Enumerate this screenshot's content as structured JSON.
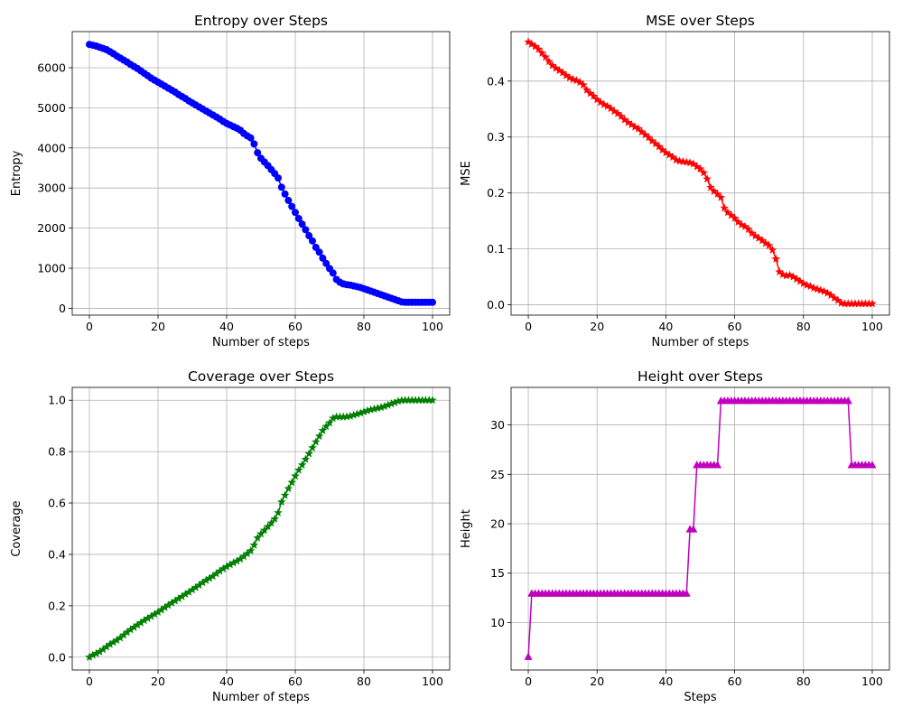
{
  "chart_data": [
    {
      "type": "line",
      "title": "Entropy over Steps",
      "xlabel": "Number of steps",
      "ylabel": "Entropy",
      "xlim": [
        -5,
        105
      ],
      "ylim": [
        -170,
        6900
      ],
      "xticks": [
        0,
        20,
        40,
        60,
        80,
        100
      ],
      "yticks": [
        0,
        1000,
        2000,
        3000,
        4000,
        5000,
        6000
      ],
      "grid": true,
      "marker": "circle",
      "color": "#0000ff",
      "series": [
        {
          "x": [
            0,
            1,
            2,
            3,
            4,
            5,
            6,
            7,
            8,
            9,
            10,
            11,
            12,
            13,
            14,
            15,
            16,
            17,
            18,
            19,
            20,
            21,
            22,
            23,
            24,
            25,
            26,
            27,
            28,
            29,
            30,
            31,
            32,
            33,
            34,
            35,
            36,
            37,
            38,
            39,
            40,
            41,
            42,
            43,
            44,
            45,
            46,
            47,
            48,
            49,
            50,
            51,
            52,
            53,
            54,
            55,
            56,
            57,
            58,
            59,
            60,
            61,
            62,
            63,
            64,
            65,
            66,
            67,
            68,
            69,
            70,
            71,
            72,
            73,
            74,
            75,
            76,
            77,
            78,
            79,
            80,
            81,
            82,
            83,
            84,
            85,
            86,
            87,
            88,
            89,
            90,
            91,
            92,
            93,
            94,
            95,
            96,
            97,
            98,
            99,
            100
          ],
          "values": [
            6580,
            6560,
            6540,
            6510,
            6480,
            6450,
            6400,
            6350,
            6290,
            6240,
            6190,
            6140,
            6080,
            6030,
            5980,
            5920,
            5860,
            5800,
            5740,
            5690,
            5640,
            5590,
            5540,
            5490,
            5440,
            5390,
            5330,
            5280,
            5230,
            5170,
            5120,
            5070,
            5020,
            4970,
            4920,
            4870,
            4820,
            4770,
            4720,
            4660,
            4610,
            4570,
            4530,
            4490,
            4440,
            4360,
            4300,
            4250,
            4100,
            3880,
            3740,
            3650,
            3560,
            3460,
            3360,
            3250,
            3020,
            2850,
            2690,
            2540,
            2390,
            2240,
            2100,
            1960,
            1810,
            1680,
            1520,
            1400,
            1250,
            1120,
            990,
            880,
            720,
            650,
            610,
            590,
            580,
            560,
            540,
            520,
            490,
            460,
            430,
            400,
            370,
            340,
            310,
            280,
            250,
            220,
            190,
            160,
            150,
            150,
            150,
            150,
            150,
            150,
            150,
            150,
            150
          ]
        }
      ]
    },
    {
      "type": "line",
      "title": "MSE over Steps",
      "xlabel": "Number of steps",
      "ylabel": "MSE",
      "xlim": [
        -5,
        105
      ],
      "ylim": [
        -0.0185,
        0.4885
      ],
      "xticks": [
        0,
        20,
        40,
        60,
        80,
        100
      ],
      "yticks": [
        0.0,
        0.1,
        0.2,
        0.3,
        0.4
      ],
      "ytick_labels": [
        "0.0",
        "0.1",
        "0.2",
        "0.3",
        "0.4"
      ],
      "grid": true,
      "marker": "star",
      "color": "#ff0000",
      "series": [
        {
          "x": [
            0,
            1,
            2,
            3,
            4,
            5,
            6,
            7,
            8,
            9,
            10,
            11,
            12,
            13,
            14,
            15,
            16,
            17,
            18,
            19,
            20,
            21,
            22,
            23,
            24,
            25,
            26,
            27,
            28,
            29,
            30,
            31,
            32,
            33,
            34,
            35,
            36,
            37,
            38,
            39,
            40,
            41,
            42,
            43,
            44,
            45,
            46,
            47,
            48,
            49,
            50,
            51,
            52,
            53,
            54,
            55,
            56,
            57,
            58,
            59,
            60,
            61,
            62,
            63,
            64,
            65,
            66,
            67,
            68,
            69,
            70,
            71,
            72,
            73,
            74,
            75,
            76,
            77,
            78,
            79,
            80,
            81,
            82,
            83,
            84,
            85,
            86,
            87,
            88,
            89,
            90,
            91,
            92,
            93,
            94,
            95,
            96,
            97,
            98,
            99,
            100
          ],
          "values": [
            0.47,
            0.466,
            0.462,
            0.457,
            0.45,
            0.443,
            0.435,
            0.428,
            0.423,
            0.419,
            0.415,
            0.41,
            0.406,
            0.403,
            0.401,
            0.398,
            0.393,
            0.384,
            0.378,
            0.373,
            0.367,
            0.362,
            0.358,
            0.355,
            0.351,
            0.346,
            0.342,
            0.337,
            0.331,
            0.326,
            0.322,
            0.318,
            0.315,
            0.309,
            0.304,
            0.299,
            0.293,
            0.288,
            0.283,
            0.277,
            0.272,
            0.268,
            0.264,
            0.259,
            0.257,
            0.256,
            0.255,
            0.254,
            0.252,
            0.247,
            0.243,
            0.236,
            0.225,
            0.21,
            0.203,
            0.198,
            0.192,
            0.173,
            0.165,
            0.16,
            0.155,
            0.148,
            0.143,
            0.14,
            0.135,
            0.128,
            0.123,
            0.119,
            0.115,
            0.11,
            0.106,
            0.098,
            0.082,
            0.059,
            0.054,
            0.052,
            0.053,
            0.05,
            0.046,
            0.042,
            0.038,
            0.035,
            0.033,
            0.03,
            0.028,
            0.026,
            0.024,
            0.021,
            0.017,
            0.012,
            0.008,
            0.003,
            0.002,
            0.002,
            0.002,
            0.002,
            0.002,
            0.002,
            0.002,
            0.002,
            0.002
          ]
        }
      ]
    },
    {
      "type": "line",
      "title": "Coverage over Steps",
      "xlabel": "Number of steps",
      "ylabel": "Coverage",
      "xlim": [
        -5,
        105
      ],
      "ylim": [
        -0.05,
        1.05
      ],
      "xticks": [
        0,
        20,
        40,
        60,
        80,
        100
      ],
      "yticks": [
        0.0,
        0.2,
        0.4,
        0.6,
        0.8,
        1.0
      ],
      "ytick_labels": [
        "0.0",
        "0.2",
        "0.4",
        "0.6",
        "0.8",
        "1.0"
      ],
      "grid": true,
      "marker": "star",
      "color": "#008000",
      "series": [
        {
          "x": [
            0,
            1,
            2,
            3,
            4,
            5,
            6,
            7,
            8,
            9,
            10,
            11,
            12,
            13,
            14,
            15,
            16,
            17,
            18,
            19,
            20,
            21,
            22,
            23,
            24,
            25,
            26,
            27,
            28,
            29,
            30,
            31,
            32,
            33,
            34,
            35,
            36,
            37,
            38,
            39,
            40,
            41,
            42,
            43,
            44,
            45,
            46,
            47,
            48,
            49,
            50,
            51,
            52,
            53,
            54,
            55,
            56,
            57,
            58,
            59,
            60,
            61,
            62,
            63,
            64,
            65,
            66,
            67,
            68,
            69,
            70,
            71,
            72,
            73,
            74,
            75,
            76,
            77,
            78,
            79,
            80,
            81,
            82,
            83,
            84,
            85,
            86,
            87,
            88,
            89,
            90,
            91,
            92,
            93,
            94,
            95,
            96,
            97,
            98,
            99,
            100
          ],
          "values": [
            0.0,
            0.008,
            0.014,
            0.021,
            0.03,
            0.04,
            0.05,
            0.058,
            0.066,
            0.075,
            0.086,
            0.097,
            0.107,
            0.116,
            0.125,
            0.134,
            0.143,
            0.151,
            0.159,
            0.167,
            0.175,
            0.184,
            0.193,
            0.202,
            0.211,
            0.219,
            0.228,
            0.236,
            0.245,
            0.253,
            0.262,
            0.271,
            0.28,
            0.29,
            0.299,
            0.307,
            0.315,
            0.325,
            0.335,
            0.344,
            0.352,
            0.36,
            0.367,
            0.374,
            0.382,
            0.392,
            0.403,
            0.414,
            0.436,
            0.464,
            0.48,
            0.494,
            0.508,
            0.522,
            0.538,
            0.562,
            0.604,
            0.63,
            0.656,
            0.68,
            0.705,
            0.728,
            0.748,
            0.77,
            0.792,
            0.815,
            0.838,
            0.86,
            0.882,
            0.898,
            0.912,
            0.93,
            0.935,
            0.935,
            0.935,
            0.936,
            0.938,
            0.942,
            0.946,
            0.95,
            0.955,
            0.959,
            0.963,
            0.966,
            0.969,
            0.972,
            0.976,
            0.981,
            0.986,
            0.991,
            0.996,
            0.999,
            1.0,
            1.0,
            1.0,
            1.0,
            1.0,
            1.0,
            1.0,
            1.0,
            1.0
          ]
        }
      ]
    },
    {
      "type": "line",
      "title": "Height over Steps",
      "xlabel": "Steps",
      "ylabel": "Height",
      "xlim": [
        -5,
        105
      ],
      "ylim": [
        5.2,
        33.8
      ],
      "xticks": [
        0,
        20,
        40,
        60,
        80,
        100
      ],
      "yticks": [
        10,
        15,
        20,
        25,
        30
      ],
      "grid": true,
      "marker": "triangle",
      "color": "#bf00bf",
      "series": [
        {
          "x": [
            0,
            1,
            2,
            3,
            4,
            5,
            6,
            7,
            8,
            9,
            10,
            11,
            12,
            13,
            14,
            15,
            16,
            17,
            18,
            19,
            20,
            21,
            22,
            23,
            24,
            25,
            26,
            27,
            28,
            29,
            30,
            31,
            32,
            33,
            34,
            35,
            36,
            37,
            38,
            39,
            40,
            41,
            42,
            43,
            44,
            45,
            46,
            47,
            48,
            49,
            50,
            51,
            52,
            53,
            54,
            55,
            56,
            57,
            58,
            59,
            60,
            61,
            62,
            63,
            64,
            65,
            66,
            67,
            68,
            69,
            70,
            71,
            72,
            73,
            74,
            75,
            76,
            77,
            78,
            79,
            80,
            81,
            82,
            83,
            84,
            85,
            86,
            87,
            88,
            89,
            90,
            91,
            92,
            93,
            94,
            95,
            96,
            97,
            98,
            99,
            100
          ],
          "values": [
            6.5,
            12.9,
            12.9,
            12.9,
            12.9,
            12.9,
            12.9,
            12.9,
            12.9,
            12.9,
            12.9,
            12.9,
            12.9,
            12.9,
            12.9,
            12.9,
            12.9,
            12.9,
            12.9,
            12.9,
            12.9,
            12.9,
            12.9,
            12.9,
            12.9,
            12.9,
            12.9,
            12.9,
            12.9,
            12.9,
            12.9,
            12.9,
            12.9,
            12.9,
            12.9,
            12.9,
            12.9,
            12.9,
            12.9,
            12.9,
            12.9,
            12.9,
            12.9,
            12.9,
            12.9,
            12.9,
            12.9,
            19.4,
            19.4,
            25.9,
            25.9,
            25.9,
            25.9,
            25.9,
            25.9,
            25.9,
            32.4,
            32.4,
            32.4,
            32.4,
            32.4,
            32.4,
            32.4,
            32.4,
            32.4,
            32.4,
            32.4,
            32.4,
            32.4,
            32.4,
            32.4,
            32.4,
            32.4,
            32.4,
            32.4,
            32.4,
            32.4,
            32.4,
            32.4,
            32.4,
            32.4,
            32.4,
            32.4,
            32.4,
            32.4,
            32.4,
            32.4,
            32.4,
            32.4,
            32.4,
            32.4,
            32.4,
            32.4,
            32.4,
            25.9,
            25.9,
            25.9,
            25.9,
            25.9,
            25.9,
            25.9
          ]
        }
      ]
    }
  ]
}
